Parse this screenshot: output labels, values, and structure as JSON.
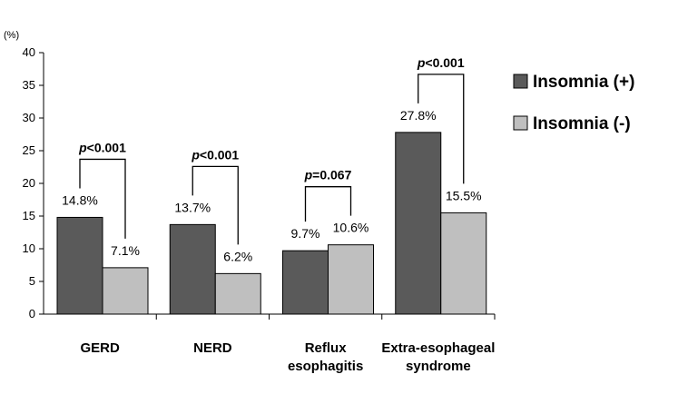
{
  "chart_data": {
    "type": "bar",
    "unit_label": "(%)",
    "categories": [
      "GERD",
      "NERD",
      "Reflux esophagitis",
      "Extra-esophageal syndrome"
    ],
    "category_lines": [
      [
        "GERD"
      ],
      [
        "NERD"
      ],
      [
        "Reflux",
        "esophagitis"
      ],
      [
        "Extra-esophageal",
        "syndrome"
      ]
    ],
    "series": [
      {
        "name": "Insomnia (+)",
        "values": [
          14.8,
          13.7,
          9.7,
          27.8
        ],
        "labels": [
          "14.8%",
          "13.7%",
          "9.7%",
          "27.8%"
        ],
        "color": "#5a5a5a"
      },
      {
        "name": "Insomnia (-)",
        "values": [
          7.1,
          6.2,
          10.6,
          15.5
        ],
        "labels": [
          "7.1%",
          "6.2%",
          "10.6%",
          "15.5%"
        ],
        "color": "#bfbfbf"
      }
    ],
    "p_values": [
      {
        "prefix": "p",
        "text": "<0.001"
      },
      {
        "prefix": "p",
        "text": "<0.001"
      },
      {
        "prefix": "p",
        "text": "=0.067"
      },
      {
        "prefix": "p",
        "text": "<0.001"
      }
    ],
    "ylim": [
      0,
      40
    ],
    "yticks": [
      0,
      5,
      10,
      15,
      20,
      25,
      30,
      35,
      40
    ],
    "grid": false,
    "legend_position": "right"
  }
}
